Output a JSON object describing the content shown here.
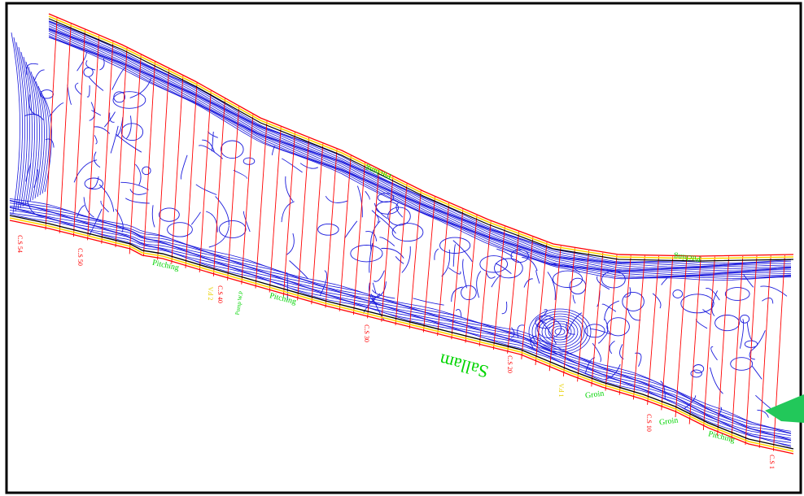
{
  "river_name": "Sallam",
  "colors": {
    "frame": "#000000",
    "contour": "#1a1adc",
    "bank_red": "#ff0000",
    "bank_yellow": "#ffd800",
    "section_line": "#ff0000",
    "label_green": "#00d400",
    "label_yellow": "#e8d000",
    "label_red": "#ff0000",
    "fill_green": "#22c85a"
  },
  "cross_sections": {
    "cs54": "C.S 54",
    "cs50": "C.S 50",
    "cs40": "C.S 40",
    "cs30": "C.S 30",
    "cs20": "C.S 20",
    "cs10": "C.S 10",
    "cs1": "C.S 1"
  },
  "features": {
    "pitching_top_left": "Pitching",
    "pitching_top_right": "Pitching",
    "pitching_bottom_left": "Pitching",
    "pitching_bottom_mid": "Pitching",
    "pitching_bottom_right": "Pitching",
    "groin_1": "Groin",
    "groin_2": "Groin",
    "pump": "Pump W.P",
    "vd2": "V.d 2",
    "vd1": "V.d 1"
  }
}
